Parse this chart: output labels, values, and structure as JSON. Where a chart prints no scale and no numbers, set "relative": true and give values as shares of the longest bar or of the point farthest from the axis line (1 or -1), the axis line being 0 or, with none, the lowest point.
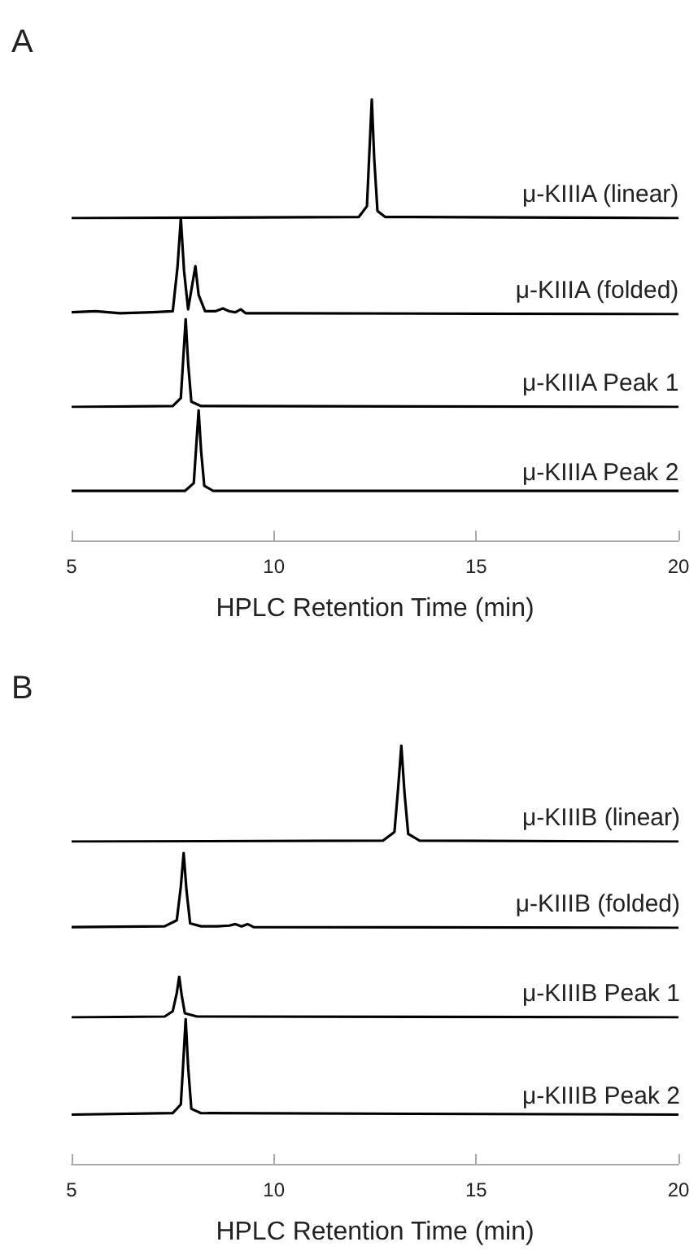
{
  "chart_data": [
    {
      "type": "line",
      "title": "A",
      "relative": true,
      "xlim": [
        5,
        20
      ],
      "tick_labels": false,
      "marker": "none",
      "x": [
        5,
        12.1,
        12.3,
        12.36,
        12.42,
        12.48,
        12.56,
        12.75,
        20
      ],
      "series": [
        {
          "name": "μ-KIIIA (linear)",
          "color": "#000000",
          "values": [
            0,
            0.01,
            0.1,
            0.55,
            1,
            0.5,
            0.06,
            0.01,
            0
          ]
        }
      ]
    },
    {
      "type": "line",
      "relative": true,
      "xlim": [
        5,
        20
      ],
      "tick_labels": false,
      "marker": "none",
      "x": [
        5,
        5.6,
        6.2,
        7.0,
        7.5,
        7.62,
        7.7,
        7.78,
        7.88,
        7.98,
        8.06,
        8.14,
        8.3,
        8.55,
        8.74,
        8.9,
        9.05,
        9.18,
        9.3,
        10,
        20
      ],
      "series": [
        {
          "name": "μ-KIIIA (folded)",
          "color": "#000000",
          "values": [
            0.02,
            0.03,
            0.01,
            0.02,
            0.03,
            0.5,
            1,
            0.45,
            0.05,
            0.3,
            0.5,
            0.2,
            0.03,
            0.03,
            0.06,
            0.03,
            0.02,
            0.05,
            0.01,
            0.01,
            0
          ]
        }
      ]
    },
    {
      "type": "line",
      "relative": true,
      "xlim": [
        5,
        20
      ],
      "tick_labels": false,
      "marker": "none",
      "x": [
        5,
        7.5,
        7.7,
        7.76,
        7.82,
        7.88,
        7.96,
        8.2,
        20
      ],
      "series": [
        {
          "name": "μ-KIIIA Peak 1",
          "color": "#000000",
          "values": [
            0,
            0.01,
            0.1,
            0.55,
            1,
            0.5,
            0.06,
            0.01,
            0
          ]
        }
      ]
    },
    {
      "type": "line",
      "relative": true,
      "xlim": [
        5,
        20
      ],
      "xticks": [
        5,
        10,
        15,
        20
      ],
      "tick_labels": "x",
      "xlabel": "HPLC Retention Time (min)",
      "marker": "none",
      "x": [
        5,
        7.8,
        8.02,
        8.08,
        8.14,
        8.2,
        8.28,
        8.5,
        20
      ],
      "series": [
        {
          "name": "μ-KIIIA Peak 2",
          "color": "#000000",
          "values": [
            0.38,
            0.38,
            0.44,
            0.72,
            1,
            0.69,
            0.42,
            0.38,
            0.38
          ]
        }
      ]
    },
    {
      "type": "line",
      "title": "B",
      "relative": true,
      "xlim": [
        5,
        20
      ],
      "tick_labels": false,
      "marker": "none",
      "x": [
        5,
        12.7,
        12.98,
        13.07,
        13.15,
        13.23,
        13.32,
        13.6,
        20
      ],
      "series": [
        {
          "name": "μ-KIIIB (linear)",
          "color": "#000000",
          "values": [
            0,
            0.01,
            0.1,
            0.55,
            1,
            0.5,
            0.08,
            0.01,
            0
          ]
        }
      ]
    },
    {
      "type": "line",
      "relative": true,
      "xlim": [
        5,
        20
      ],
      "tick_labels": false,
      "marker": "none",
      "x": [
        5,
        7.3,
        7.6,
        7.7,
        7.77,
        7.84,
        7.93,
        8.2,
        8.6,
        8.9,
        9.05,
        9.2,
        9.35,
        9.5,
        20
      ],
      "series": [
        {
          "name": "μ-KIIIB (folded)",
          "color": "#000000",
          "values": [
            0.01,
            0.02,
            0.1,
            0.55,
            1,
            0.5,
            0.06,
            0.02,
            0.02,
            0.03,
            0.05,
            0.02,
            0.05,
            0.01,
            0
          ]
        }
      ]
    },
    {
      "type": "line",
      "relative": true,
      "xlim": [
        5,
        20
      ],
      "tick_labels": false,
      "marker": "none",
      "x": [
        5,
        7.3,
        7.5,
        7.6,
        7.66,
        7.72,
        7.8,
        8.1,
        20
      ],
      "series": [
        {
          "name": "μ-KIIIB Peak 1",
          "color": "#000000",
          "values": [
            0,
            0.02,
            0.15,
            0.6,
            1,
            0.55,
            0.1,
            0.02,
            0
          ]
        }
      ]
    },
    {
      "type": "line",
      "relative": true,
      "xlim": [
        5,
        20
      ],
      "xticks": [
        5,
        10,
        15,
        20
      ],
      "tick_labels": "x",
      "xlabel": "HPLC Retention Time (min)",
      "marker": "none",
      "x": [
        5,
        7.5,
        7.7,
        7.76,
        7.82,
        7.88,
        7.96,
        8.2,
        20
      ],
      "series": [
        {
          "name": "μ-KIIIB Peak 2",
          "color": "#000000",
          "values": [
            0.34,
            0.35,
            0.41,
            0.7,
            1,
            0.67,
            0.38,
            0.35,
            0.34
          ]
        }
      ]
    }
  ]
}
